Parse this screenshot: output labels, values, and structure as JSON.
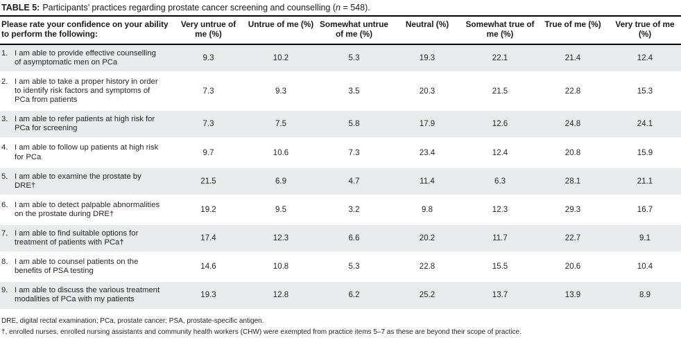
{
  "title": {
    "label": "TABLE 5:",
    "text": "Participants’ practices regarding prostate cancer screening and counselling (",
    "n_var": "n",
    "text_end": " = 548)."
  },
  "table": {
    "col0_header": "Please rate your confidence on your ability to perform the following:",
    "columns": [
      "Very untrue of me (%)",
      "Untrue of me (%)",
      "Somewhat untrue of me (%)",
      "Neutral (%)",
      "Somewhat true of me (%)",
      "True of me (%)",
      "Very true of me (%)"
    ],
    "rows": [
      {
        "num": "1.",
        "question": "I am able to provide effective counselling of asymptomatic men on PCa",
        "values": [
          9.3,
          10.2,
          5.3,
          19.3,
          22.1,
          21.4,
          12.4
        ]
      },
      {
        "num": "2.",
        "question": "I am able to take a proper history in order to identify risk factors and symptoms of PCa from patients",
        "values": [
          7.3,
          9.3,
          3.5,
          20.3,
          21.5,
          22.8,
          15.3
        ]
      },
      {
        "num": "3.",
        "question": "I am able to refer patients at high risk for PCa for screening",
        "values": [
          7.3,
          7.5,
          5.8,
          17.9,
          12.6,
          24.8,
          24.1
        ]
      },
      {
        "num": "4.",
        "question": "I am able to follow up patients at high risk for PCa",
        "values": [
          9.7,
          10.6,
          7.3,
          23.4,
          12.4,
          20.8,
          15.9
        ]
      },
      {
        "num": "5.",
        "question": "I am able to examine the prostate by DRE†",
        "values": [
          21.5,
          6.9,
          4.7,
          11.4,
          6.3,
          28.1,
          21.1
        ]
      },
      {
        "num": "6.",
        "question": "I am able to detect palpable abnormalities on the prostate during DRE†",
        "values": [
          19.2,
          9.5,
          3.2,
          9.8,
          12.3,
          29.3,
          16.7
        ]
      },
      {
        "num": "7.",
        "question": "I am able to find suitable options for treatment of patients with PCa†",
        "values": [
          17.4,
          12.3,
          6.6,
          20.2,
          11.7,
          22.7,
          9.1
        ]
      },
      {
        "num": "8.",
        "question": "I am able to counsel patients on the benefits of PSA testing",
        "values": [
          14.6,
          10.8,
          5.3,
          22.8,
          15.5,
          20.6,
          10.4
        ]
      },
      {
        "num": "9.",
        "question": "I am able to discuss the various treatment modalities of PCa with my patients",
        "values": [
          19.3,
          12.8,
          6.2,
          25.2,
          13.7,
          13.9,
          8.9
        ]
      }
    ]
  },
  "footnotes": [
    "DRE, digital rectal examination; PCa, prostate cancer; PSA, prostate-specific antigen.",
    "†, enrolled nurses, enrolled nursing assistants and community health workers (CHW) were exempted from practice items 5–7 as these are beyond their scope of practice."
  ],
  "colors": {
    "stripe": "#eaebed",
    "border": "#000000",
    "text": "#262626"
  }
}
